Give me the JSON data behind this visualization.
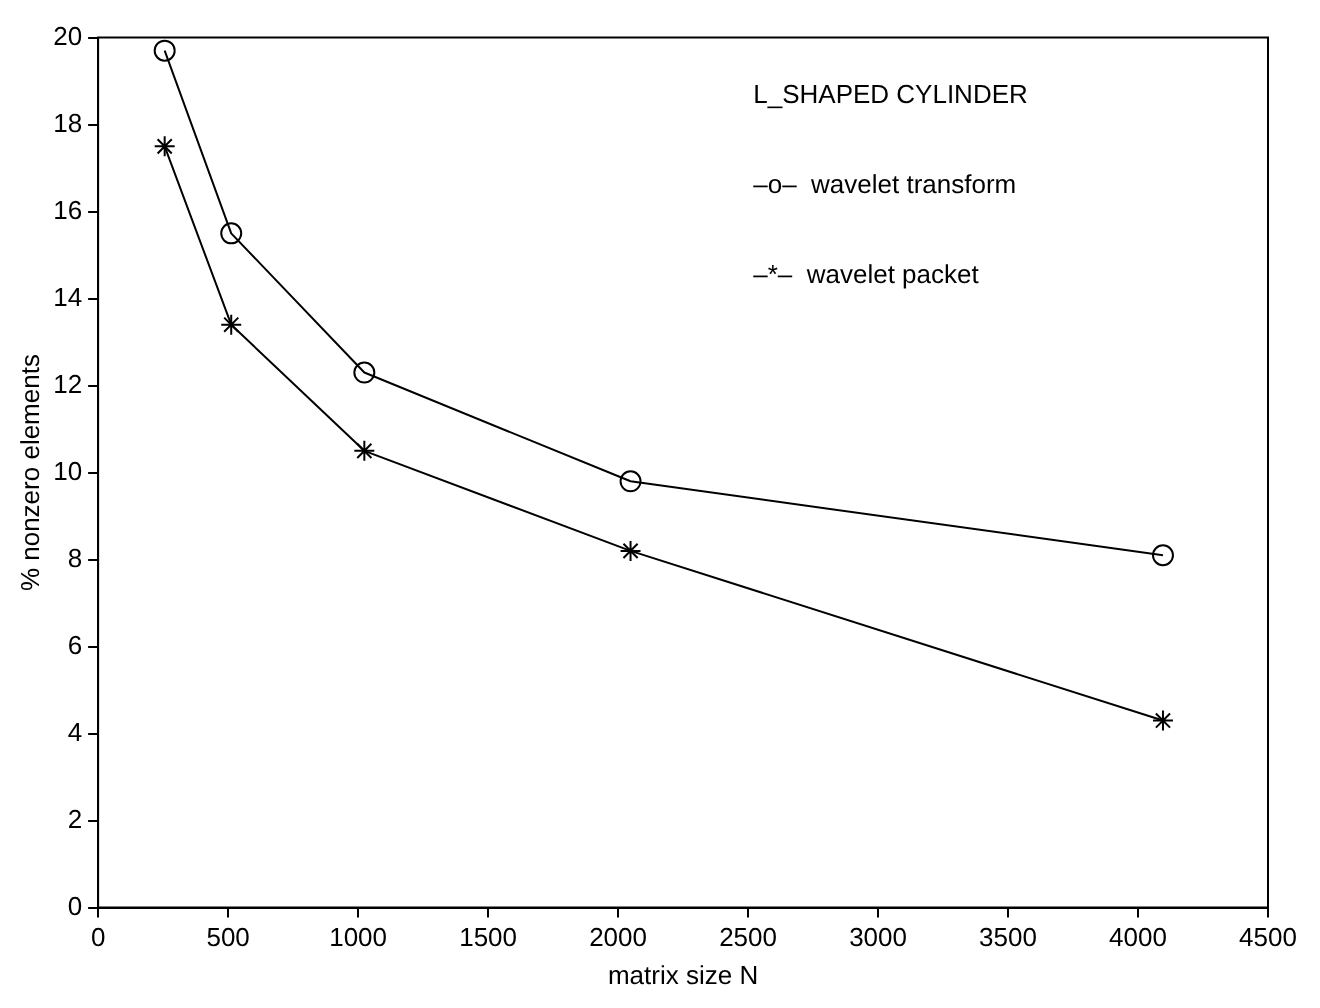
{
  "chart_data": {
    "type": "line",
    "xlabel": "matrix size N",
    "ylabel": "% nonzero elements",
    "annotations": [
      "L_SHAPED CYLINDER",
      "–o–  wavelet transform",
      "–*–  wavelet packet"
    ],
    "series": [
      {
        "x": [
          256,
          512,
          1024,
          2048,
          4096
        ],
        "values": [
          19.7,
          15.5,
          12.3,
          9.8,
          8.1
        ],
        "color": "#000000",
        "marker": "circle"
      },
      {
        "x": [
          256,
          512,
          1024,
          2048,
          4096
        ],
        "values": [
          17.5,
          13.4,
          10.5,
          8.2,
          4.3
        ],
        "color": "#000000",
        "marker": "cross"
      }
    ],
    "xlim": [
      0,
      4500
    ],
    "xticks": [
      0,
      500,
      1000,
      1500,
      2000,
      2500,
      3000,
      3500,
      4000,
      4500
    ],
    "ylim": [
      0,
      20
    ],
    "yticks": [
      0,
      2,
      4,
      6,
      8,
      10,
      12,
      14,
      16,
      18,
      20
    ],
    "grid": false,
    "legend": false,
    "line_style": "solid"
  }
}
